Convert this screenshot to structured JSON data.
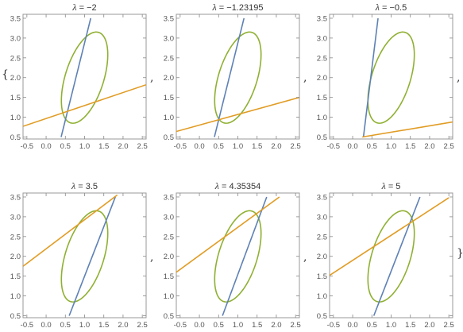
{
  "separators": {
    "comma": ",",
    "open_brace": "{",
    "close_brace": "}"
  },
  "colors": {
    "ellipse": "#8fb032",
    "line_blue": "#5e81b5",
    "line_orange": "#e19c24",
    "frame": "#999999"
  },
  "chart_data": [
    {
      "type": "line",
      "title": "λ = −2",
      "title_symbol": "λ",
      "title_value": " = −2",
      "xlim": [
        -0.6,
        2.6
      ],
      "ylim": [
        0.45,
        3.6
      ],
      "xticks": [
        "-0.5",
        "0.0",
        "0.5",
        "1.0",
        "1.5",
        "2.0",
        "2.5"
      ],
      "yticks": [
        "0.5",
        "1.0",
        "1.5",
        "2.0",
        "2.5",
        "3.0",
        "3.5"
      ],
      "ellipse": {
        "center": [
          1.0,
          2.0
        ],
        "rx": 0.5,
        "ry": 1.2,
        "rotation_deg": 18
      },
      "series": [
        {
          "color": "blue",
          "x": [
            0.39,
            1.16
          ],
          "y": [
            0.5,
            3.5
          ]
        },
        {
          "color": "orange",
          "x": [
            -0.6,
            2.6
          ],
          "y": [
            0.77,
            1.82
          ]
        }
      ]
    },
    {
      "type": "line",
      "title": "λ = −1.23195",
      "title_symbol": "λ",
      "title_value": " = −1.23195",
      "xlim": [
        -0.6,
        2.6
      ],
      "ylim": [
        0.45,
        3.6
      ],
      "xticks": [
        "-0.5",
        "0.0",
        "0.5",
        "1.0",
        "1.5",
        "2.0",
        "2.5"
      ],
      "yticks": [
        "0.5",
        "1.0",
        "1.5",
        "2.0",
        "2.5",
        "3.0",
        "3.5"
      ],
      "ellipse": {
        "center": [
          1.0,
          2.0
        ],
        "rx": 0.5,
        "ry": 1.2,
        "rotation_deg": 18
      },
      "series": [
        {
          "color": "blue",
          "x": [
            0.39,
            1.16
          ],
          "y": [
            0.5,
            3.5
          ]
        },
        {
          "color": "orange",
          "x": [
            -0.6,
            2.6
          ],
          "y": [
            0.64,
            1.5
          ]
        }
      ]
    },
    {
      "type": "line",
      "title": "λ = −0.5",
      "title_symbol": "λ",
      "title_value": " = −0.5",
      "xlim": [
        -0.6,
        2.6
      ],
      "ylim": [
        0.45,
        3.6
      ],
      "xticks": [
        "-0.5",
        "0.0",
        "0.5",
        "1.0",
        "1.5",
        "2.0",
        "2.5"
      ],
      "yticks": [
        "0.5",
        "1.0",
        "1.5",
        "2.0",
        "2.5",
        "3.0",
        "3.5"
      ],
      "ellipse": {
        "center": [
          1.0,
          2.0
        ],
        "rx": 0.5,
        "ry": 1.2,
        "rotation_deg": 18
      },
      "series": [
        {
          "color": "blue",
          "x": [
            0.28,
            0.66
          ],
          "y": [
            0.5,
            3.5
          ]
        },
        {
          "color": "orange",
          "x": [
            0.25,
            2.6
          ],
          "y": [
            0.5,
            0.88
          ]
        }
      ]
    },
    {
      "type": "line",
      "title": "λ = 3.5",
      "title_symbol": "λ",
      "title_value": " = 3.5",
      "xlim": [
        -0.6,
        2.6
      ],
      "ylim": [
        0.45,
        3.6
      ],
      "xticks": [
        "-0.5",
        "0.0",
        "0.5",
        "1.0",
        "1.5",
        "2.0",
        "2.5"
      ],
      "yticks": [
        "0.5",
        "1.0",
        "1.5",
        "2.0",
        "2.5",
        "3.0",
        "3.5"
      ],
      "ellipse": {
        "center": [
          1.0,
          2.0
        ],
        "rx": 0.5,
        "ry": 1.2,
        "rotation_deg": 18
      },
      "series": [
        {
          "color": "blue",
          "x": [
            0.6,
            1.8
          ],
          "y": [
            0.5,
            3.5
          ]
        },
        {
          "color": "orange",
          "x": [
            -0.6,
            1.85
          ],
          "y": [
            1.75,
            3.55
          ]
        }
      ]
    },
    {
      "type": "line",
      "title": "λ = 4.35354",
      "title_symbol": "λ",
      "title_value": " = 4.35354",
      "xlim": [
        -0.6,
        2.6
      ],
      "ylim": [
        0.45,
        3.6
      ],
      "xticks": [
        "-0.5",
        "0.0",
        "0.5",
        "1.0",
        "1.5",
        "2.0",
        "2.5"
      ],
      "yticks": [
        "0.5",
        "1.0",
        "1.5",
        "2.0",
        "2.5",
        "3.0",
        "3.5"
      ],
      "ellipse": {
        "center": [
          1.0,
          2.0
        ],
        "rx": 0.5,
        "ry": 1.2,
        "rotation_deg": 18
      },
      "series": [
        {
          "color": "blue",
          "x": [
            0.6,
            1.75
          ],
          "y": [
            0.5,
            3.5
          ]
        },
        {
          "color": "orange",
          "x": [
            -0.6,
            2.08
          ],
          "y": [
            1.6,
            3.5
          ]
        }
      ]
    },
    {
      "type": "line",
      "title": "λ = 5",
      "title_symbol": "λ",
      "title_value": " = 5",
      "xlim": [
        -0.6,
        2.6
      ],
      "ylim": [
        0.45,
        3.6
      ],
      "xticks": [
        "-0.5",
        "0.0",
        "0.5",
        "1.0",
        "1.5",
        "2.0",
        "2.5"
      ],
      "yticks": [
        "0.5",
        "1.0",
        "1.5",
        "2.0",
        "2.5",
        "3.0",
        "3.5"
      ],
      "ellipse": {
        "center": [
          1.0,
          2.0
        ],
        "rx": 0.5,
        "ry": 1.2,
        "rotation_deg": 18
      },
      "series": [
        {
          "color": "blue",
          "x": [
            0.55,
            1.75
          ],
          "y": [
            0.5,
            3.5
          ]
        },
        {
          "color": "orange",
          "x": [
            -0.6,
            2.5
          ],
          "y": [
            1.52,
            3.48
          ]
        }
      ]
    }
  ]
}
